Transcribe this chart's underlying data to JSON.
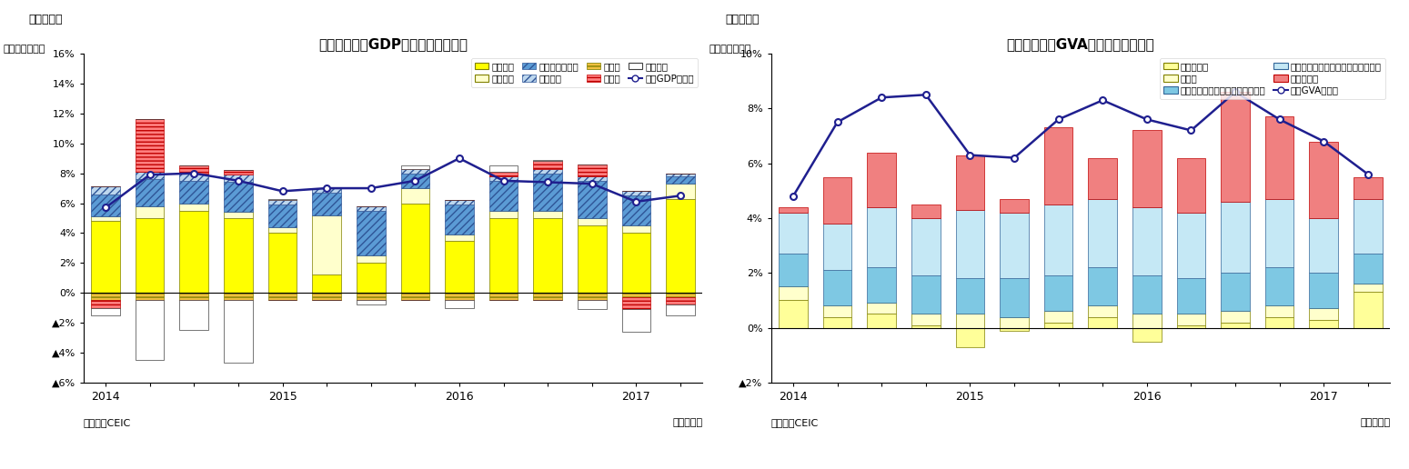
{
  "chart1": {
    "title": "インドの実質GDP成長率（需要側）",
    "subtitle": "（図表１）",
    "ylabel": "（前年同期比）",
    "footer_left": "（資料）CEIC",
    "footer_right": "（四半期）",
    "xlabels": [
      "2014",
      "",
      "",
      "",
      "2015",
      "",
      "",
      "",
      "2016",
      "",
      "",
      "",
      "2017",
      ""
    ],
    "民間消費": [
      4.8,
      5.0,
      5.5,
      5.0,
      4.0,
      1.2,
      2.0,
      6.0,
      3.5,
      5.0,
      5.0,
      4.5,
      4.0,
      6.3
    ],
    "政府消費": [
      0.3,
      0.8,
      0.5,
      0.4,
      0.4,
      4.0,
      0.5,
      1.0,
      0.4,
      0.5,
      0.5,
      0.5,
      0.5,
      1.0
    ],
    "総固定資本形成": [
      1.5,
      1.8,
      1.5,
      2.0,
      1.5,
      1.5,
      3.0,
      1.0,
      2.0,
      2.0,
      2.5,
      2.5,
      2.0,
      0.5
    ],
    "在庫変動": [
      0.5,
      0.5,
      0.5,
      0.5,
      0.3,
      0.3,
      0.3,
      0.3,
      0.3,
      0.3,
      0.3,
      0.3,
      0.3,
      0.2
    ],
    "貴重品": [
      -0.5,
      -0.5,
      -0.5,
      -0.5,
      -0.5,
      -0.5,
      -0.5,
      -0.5,
      -0.5,
      -0.5,
      -0.5,
      -0.5,
      -0.3,
      -0.3
    ],
    "純輸出": [
      -0.5,
      3.5,
      0.5,
      0.3,
      0.0,
      0.0,
      0.0,
      0.0,
      0.0,
      0.3,
      0.5,
      0.8,
      -0.8,
      -0.5
    ],
    "統計誤差": [
      -0.5,
      -4.0,
      -2.0,
      -4.2,
      0.1,
      0.0,
      -0.3,
      0.2,
      -0.5,
      0.4,
      0.1,
      -0.6,
      -1.5,
      -0.7
    ],
    "実質GDP成長率": [
      5.7,
      7.9,
      8.0,
      7.5,
      6.8,
      7.0,
      7.0,
      7.5,
      9.0,
      7.5,
      7.4,
      7.3,
      6.1,
      6.5
    ],
    "ylim": [
      -6,
      16
    ],
    "yticks": [
      -6,
      -4,
      -2,
      0,
      2,
      4,
      6,
      8,
      10,
      12,
      14,
      16
    ],
    "yticklabels": [
      "▲6%",
      "▲4%",
      "▲2%",
      "0%",
      "2%",
      "4%",
      "6%",
      "8%",
      "10%",
      "12%",
      "14%",
      "16%"
    ]
  },
  "chart2": {
    "title": "インドの実質GVA成長率（産業別）",
    "subtitle": "（図表２）",
    "ylabel": "（前年同期比）",
    "footer_left": "（資料）CEIC",
    "footer_right": "（四半期）",
    "xlabels": [
      "2014",
      "",
      "",
      "",
      "2015",
      "",
      "",
      "",
      "2016",
      "",
      "",
      "",
      "2017",
      ""
    ],
    "農林水産業": [
      1.0,
      0.4,
      0.5,
      0.1,
      -0.7,
      -0.1,
      0.2,
      0.4,
      -0.5,
      0.1,
      0.2,
      0.4,
      0.3,
      1.3
    ],
    "鉱工業": [
      0.5,
      0.4,
      0.4,
      0.4,
      0.5,
      0.4,
      0.4,
      0.4,
      0.5,
      0.4,
      0.4,
      0.4,
      0.4,
      0.3
    ],
    "卸売小売運輸": [
      1.2,
      1.3,
      1.3,
      1.4,
      1.3,
      1.4,
      1.3,
      1.4,
      1.4,
      1.3,
      1.4,
      1.4,
      1.3,
      1.1
    ],
    "金融不動産": [
      1.5,
      1.7,
      2.2,
      2.1,
      2.5,
      2.4,
      2.6,
      2.5,
      2.5,
      2.4,
      2.6,
      2.5,
      2.0,
      2.0
    ],
    "公共防衛": [
      0.2,
      1.7,
      2.0,
      0.5,
      2.0,
      0.5,
      2.8,
      1.5,
      2.8,
      2.0,
      4.0,
      3.0,
      2.8,
      0.8
    ],
    "実質GVA成長率": [
      4.8,
      7.5,
      8.4,
      8.5,
      6.3,
      6.2,
      7.6,
      8.3,
      7.6,
      7.2,
      8.6,
      7.6,
      6.8,
      5.6
    ],
    "ylim": [
      -2,
      10
    ],
    "yticks": [
      -2,
      0,
      2,
      4,
      6,
      8,
      10
    ],
    "yticklabels": [
      "▲2%",
      "0%",
      "2%",
      "4%",
      "6%",
      "8%",
      "10%"
    ]
  }
}
